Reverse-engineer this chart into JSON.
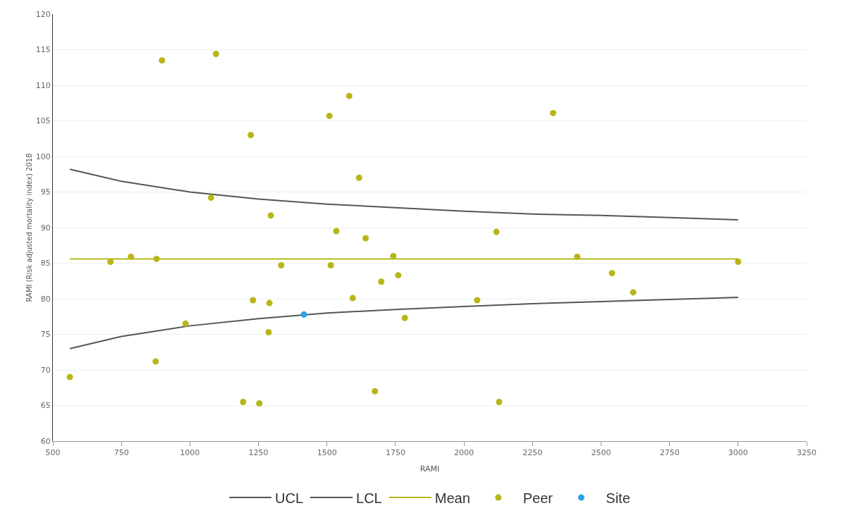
{
  "chart_data": {
    "type": "scatter",
    "xlabel": "RAMI",
    "ylabel": "RAMI (Risk adjusted mortality index) 2018",
    "xlim": [
      500,
      3250
    ],
    "xticks": [
      500,
      750,
      1000,
      1250,
      1500,
      1750,
      2000,
      2250,
      2500,
      2750,
      3000,
      3250
    ],
    "ylim": [
      60,
      120
    ],
    "yticks": [
      60,
      65,
      70,
      75,
      80,
      85,
      90,
      95,
      100,
      105,
      110,
      115,
      120
    ],
    "grid": "y",
    "legend": "bottom",
    "series": [
      {
        "name": "UCL",
        "type": "line",
        "color": "#555555",
        "x": [
          562,
          750,
          1000,
          1250,
          1500,
          1750,
          2000,
          2250,
          2500,
          2750,
          3000
        ],
        "values": [
          98.2,
          96.5,
          95.0,
          94.0,
          93.3,
          92.8,
          92.3,
          91.9,
          91.7,
          91.4,
          91.1
        ]
      },
      {
        "name": "LCL",
        "type": "line",
        "color": "#555555",
        "x": [
          562,
          750,
          1000,
          1250,
          1500,
          1750,
          2000,
          2250,
          2500,
          2750,
          3000
        ],
        "values": [
          73.0,
          74.7,
          76.2,
          77.2,
          78.0,
          78.5,
          78.9,
          79.3,
          79.6,
          79.9,
          80.2
        ]
      },
      {
        "name": "Mean",
        "type": "line",
        "color": "#b5b81b",
        "x": [
          562,
          3000
        ],
        "values": [
          85.6,
          85.6
        ]
      },
      {
        "name": "Peer",
        "color": "#b8b617",
        "x": [
          562,
          710,
          785,
          878,
          875,
          898,
          984,
          1077,
          1095,
          1194,
          1222,
          1230,
          1253,
          1287,
          1290,
          1295,
          1333,
          1509,
          1514,
          1534,
          1581,
          1594,
          1617,
          1641,
          1675,
          1698,
          1742,
          1760,
          1784,
          2048,
          2118,
          2128,
          2325,
          2413,
          2540,
          2617,
          3000
        ],
        "values": [
          69.0,
          85.2,
          85.9,
          85.6,
          71.2,
          113.5,
          76.5,
          94.2,
          114.4,
          65.5,
          103.0,
          79.8,
          65.3,
          75.3,
          79.4,
          91.7,
          84.7,
          105.7,
          84.7,
          89.5,
          108.5,
          80.1,
          97.0,
          88.5,
          67.0,
          82.4,
          86.0,
          83.3,
          77.3,
          79.8,
          89.4,
          65.5,
          106.1,
          85.9,
          83.6,
          80.9,
          85.2
        ]
      },
      {
        "name": "Site",
        "color": "#29a3e6",
        "x": [
          1416
        ],
        "values": [
          77.8
        ]
      }
    ]
  }
}
